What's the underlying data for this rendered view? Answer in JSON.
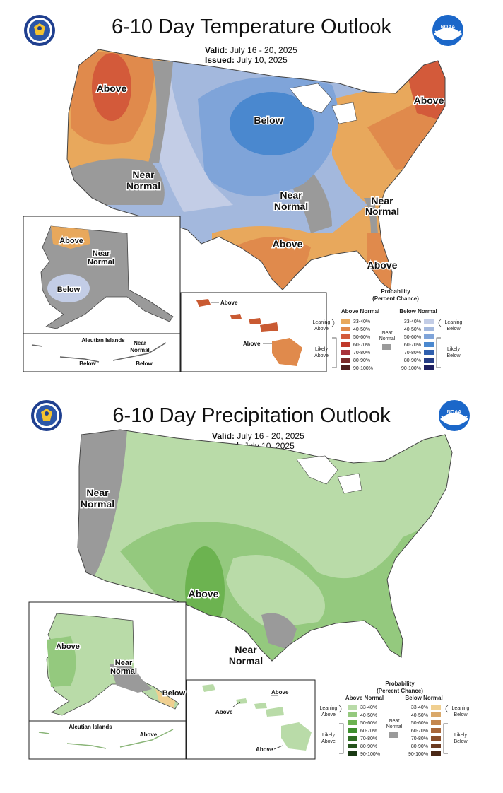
{
  "temperature": {
    "title": "6-10 Day Temperature Outlook",
    "valid_label": "Valid:",
    "valid_value": "July 16 - 20, 2025",
    "issued_label": "Issued:",
    "issued_value": "July 10, 2025",
    "labels": {
      "above_nw": "Above",
      "below_central": "Below",
      "near_normal_west_1": "Near",
      "near_normal_west_2": "Normal",
      "near_normal_mid_1": "Near",
      "near_normal_mid_2": "Normal",
      "near_normal_se_1": "Near",
      "near_normal_se_2": "Normal",
      "above_ne": "Above",
      "above_south": "Above",
      "above_fl": "Above",
      "ak_above": "Above",
      "ak_near_1": "Near",
      "ak_near_2": "Normal",
      "ak_below": "Below",
      "aleutian_title": "Aleutian Islands",
      "aleutian_near_1": "Near",
      "aleutian_near_2": "Normal",
      "aleutian_below_1": "Below",
      "aleutian_below_2": "Below",
      "hi_above_1": "Above",
      "hi_above_2": "Above"
    },
    "legend": {
      "title_1": "Probability",
      "title_2": "(Percent Chance)",
      "above_head": "Above Normal",
      "below_head": "Below Normal",
      "leaning_1": "Leaning",
      "leaning_above_2": "Above",
      "leaning_below_2": "Below",
      "likely_1": "Likely",
      "likely_above_2": "Above",
      "likely_below_2": "Below",
      "near_1": "Near",
      "near_2": "Normal",
      "bins": [
        "33-40%",
        "40-50%",
        "50-60%",
        "60-70%",
        "70-80%",
        "80-90%",
        "90-100%"
      ],
      "above_colors": [
        "#e8a85c",
        "#e08a4c",
        "#d35a3a",
        "#c0392b",
        "#a8323a",
        "#7a2a2a",
        "#4e1e1e"
      ],
      "below_colors": [
        "#c3cde6",
        "#a3b8dd",
        "#7fa4d9",
        "#4a88cf",
        "#2f5fae",
        "#253d85",
        "#1e2060"
      ],
      "near_color": "#9a9a9a"
    }
  },
  "precipitation": {
    "title": "6-10 Day Precipitation Outlook",
    "valid_label": "Valid:",
    "valid_value": "July 16 - 20, 2025",
    "issued_label": "Issued:",
    "issued_value": "July 10, 2025",
    "labels": {
      "near_normal_west_1": "Near",
      "near_normal_west_2": "Normal",
      "above_sw": "Above",
      "near_normal_tx_1": "Near",
      "near_normal_tx_2": "Normal",
      "ak_above": "Above",
      "ak_near_1": "Near",
      "ak_near_2": "Normal",
      "ak_below": "Below",
      "aleutian_title": "Aleutian Islands",
      "aleutian_above": "Above",
      "hi_above_1": "Above",
      "hi_above_2": "Above",
      "hi_above_3": "Above"
    },
    "legend": {
      "title_1": "Probability",
      "title_2": "(Percent Chance)",
      "above_head": "Above Normal",
      "below_head": "Below Normal",
      "leaning_1": "Leaning",
      "leaning_above_2": "Above",
      "leaning_below_2": "Below",
      "likely_1": "Likely",
      "likely_above_2": "Above",
      "likely_below_2": "Below",
      "near_1": "Near",
      "near_2": "Normal",
      "bins": [
        "33-40%",
        "40-50%",
        "50-60%",
        "60-70%",
        "70-80%",
        "80-90%",
        "90-100%"
      ],
      "above_colors": [
        "#b9dba8",
        "#94c97e",
        "#6cb350",
        "#3e8f2e",
        "#2f6e23",
        "#24521b",
        "#1a3a14"
      ],
      "below_colors": [
        "#f0cf90",
        "#d9a86a",
        "#c4864e",
        "#a8673a",
        "#8a4e2a",
        "#6b3a20",
        "#4a2816"
      ],
      "near_color": "#9a9a9a"
    }
  },
  "logos": {
    "left": "department-of-commerce-seal",
    "right": "noaa-logo"
  }
}
